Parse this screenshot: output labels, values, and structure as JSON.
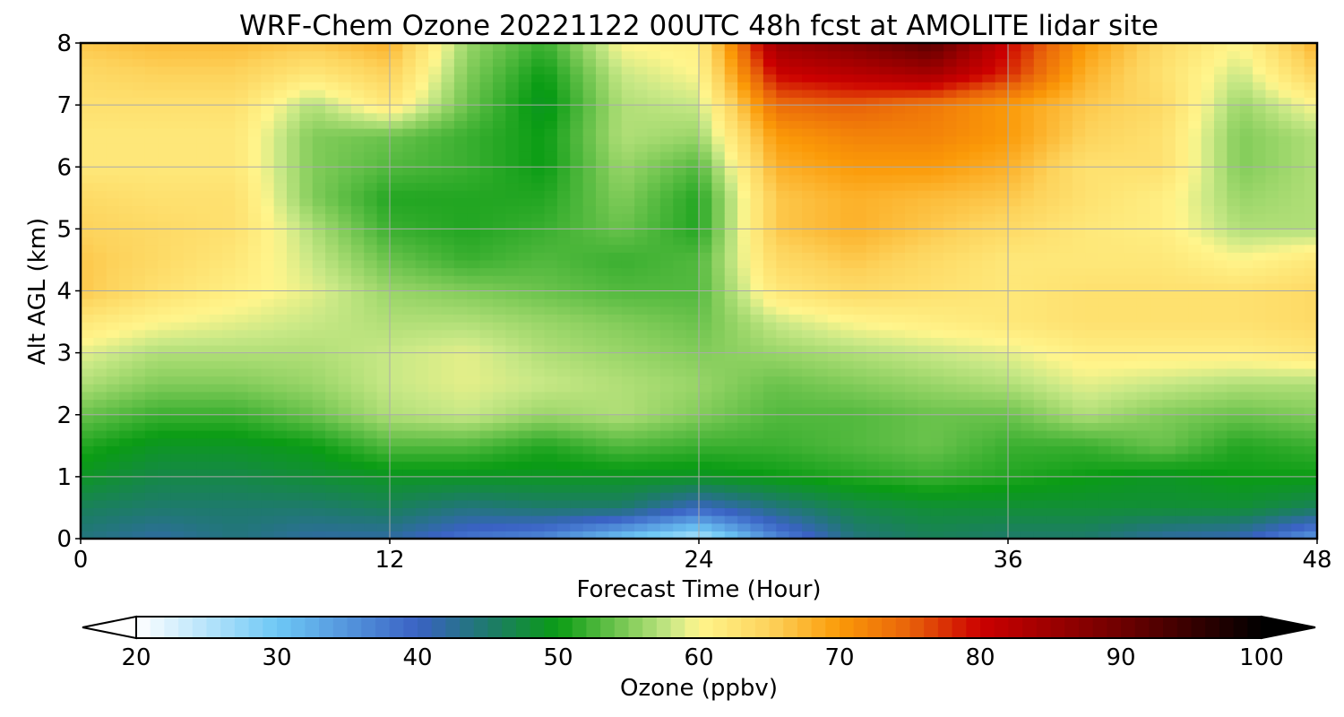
{
  "chart_data": {
    "type": "heatmap",
    "title": "WRF-Chem Ozone  20221122 00UTC 48h fcst at AMOLITE lidar site",
    "xlabel": "Forecast Time (Hour)",
    "ylabel": "Alt AGL (km)",
    "xlim": [
      0,
      48
    ],
    "ylim": [
      0,
      8
    ],
    "x_ticks": [
      "0",
      "12",
      "24",
      "36",
      "48"
    ],
    "y_ticks": [
      "0",
      "1",
      "2",
      "3",
      "4",
      "5",
      "6",
      "7",
      "8"
    ],
    "grid": true,
    "x": [
      0,
      3,
      6,
      9,
      12,
      15,
      18,
      21,
      24,
      27,
      30,
      33,
      36,
      39,
      42,
      45,
      48
    ],
    "y": [
      0,
      0.5,
      1,
      1.5,
      2,
      2.5,
      3,
      3.5,
      4,
      4.5,
      5,
      5.5,
      6,
      6.5,
      7,
      7.5,
      8
    ],
    "z_units": "ppbv",
    "values": [
      [
        44,
        42,
        44,
        42,
        42,
        38,
        36,
        30,
        25,
        36,
        44,
        46,
        45,
        45,
        42,
        41,
        34
      ],
      [
        46,
        45,
        45,
        45,
        46,
        44,
        45,
        45,
        40,
        44,
        47,
        48,
        48,
        48,
        48,
        48,
        46
      ],
      [
        49,
        47,
        47,
        48,
        49,
        49,
        49,
        49,
        49,
        50,
        51,
        52,
        51,
        50,
        49,
        50,
        50
      ],
      [
        51,
        49,
        49,
        50,
        53,
        53,
        51,
        53,
        52,
        52,
        53,
        54,
        52,
        52,
        54,
        51,
        52
      ],
      [
        54,
        52,
        52,
        54,
        57,
        58,
        56,
        57,
        55,
        53,
        53,
        54,
        54,
        57,
        55,
        54,
        55
      ],
      [
        57,
        55,
        55,
        56,
        58,
        59,
        58,
        57,
        56,
        54,
        55,
        56,
        57,
        59,
        58,
        57,
        57
      ],
      [
        59,
        57,
        57,
        57,
        58,
        59,
        57,
        56,
        55,
        56,
        57,
        58,
        59,
        61,
        61,
        61,
        62
      ],
      [
        62,
        60,
        59,
        58,
        57,
        57,
        56,
        55,
        54,
        58,
        60,
        61,
        62,
        63,
        63,
        63,
        64
      ],
      [
        66,
        63,
        61,
        59,
        56,
        55,
        54,
        53,
        53,
        62,
        64,
        63,
        62,
        63,
        63,
        63,
        64
      ],
      [
        66,
        64,
        62,
        58,
        54,
        52,
        53,
        52,
        53,
        64,
        66,
        64,
        62,
        62,
        62,
        60,
        62
      ],
      [
        65,
        64,
        63,
        57,
        52,
        51,
        52,
        54,
        51,
        66,
        68,
        66,
        64,
        62,
        61,
        57,
        57
      ],
      [
        64,
        63,
        63,
        55,
        51,
        51,
        51,
        55,
        51,
        66,
        68,
        67,
        66,
        63,
        61,
        56,
        57
      ],
      [
        62,
        62,
        62,
        55,
        53,
        52,
        50,
        56,
        53,
        68,
        70,
        70,
        68,
        63,
        63,
        55,
        57
      ],
      [
        62,
        62,
        62,
        55,
        54,
        52,
        50,
        57,
        56,
        70,
        72,
        72,
        70,
        65,
        63,
        55,
        57
      ],
      [
        63,
        63,
        63,
        57,
        62,
        54,
        49,
        57,
        58,
        74,
        75,
        73,
        70,
        66,
        64,
        56,
        60
      ],
      [
        64,
        65,
        65,
        62,
        65,
        55,
        50,
        58,
        60,
        80,
        82,
        84,
        78,
        68,
        63,
        58,
        65
      ],
      [
        66,
        67,
        67,
        66,
        68,
        56,
        52,
        60,
        61,
        85,
        88,
        92,
        80,
        70,
        64,
        60,
        68
      ]
    ],
    "colorbar": {
      "label": "Ozone  (ppbv)",
      "min": 20,
      "max": 100,
      "ticks": [
        "20",
        "30",
        "40",
        "50",
        "60",
        "70",
        "80",
        "90",
        "100"
      ],
      "extend": "both",
      "stops": [
        {
          "v": 20,
          "c": "#ffffff"
        },
        {
          "v": 30,
          "c": "#6ec8f5"
        },
        {
          "v": 40,
          "c": "#3a62c4"
        },
        {
          "v": 45,
          "c": "#1e7a6c"
        },
        {
          "v": 50,
          "c": "#0a9c14"
        },
        {
          "v": 55,
          "c": "#82cc5a"
        },
        {
          "v": 58,
          "c": "#c8e886"
        },
        {
          "v": 60,
          "c": "#fff58c"
        },
        {
          "v": 65,
          "c": "#fdd35c"
        },
        {
          "v": 70,
          "c": "#fb9a08"
        },
        {
          "v": 75,
          "c": "#e8620a"
        },
        {
          "v": 80,
          "c": "#cc0000"
        },
        {
          "v": 90,
          "c": "#6e0000"
        },
        {
          "v": 100,
          "c": "#000000"
        }
      ]
    }
  }
}
